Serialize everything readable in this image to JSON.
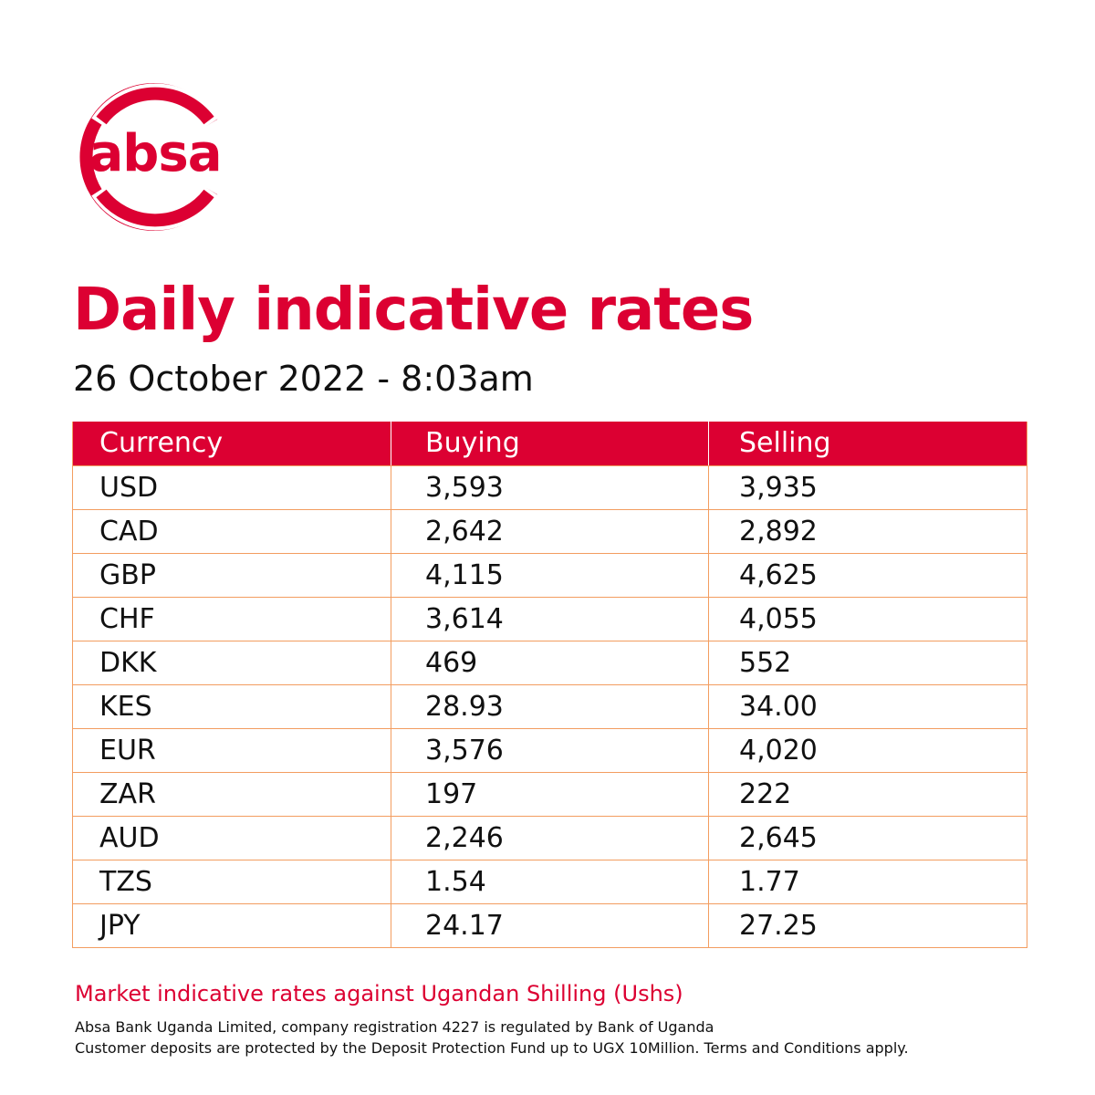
{
  "brand": {
    "logo_text": "absa",
    "color": "#dc0032"
  },
  "title": "Daily indicative rates",
  "date_time": "26 October 2022 - 8:03am",
  "table": {
    "headers": [
      "Currency",
      "Buying",
      "Selling"
    ],
    "rows": [
      {
        "currency": "USD",
        "buying": "3,593",
        "selling": "3,935"
      },
      {
        "currency": "CAD",
        "buying": "2,642",
        "selling": "2,892"
      },
      {
        "currency": "GBP",
        "buying": "4,115",
        "selling": "4,625"
      },
      {
        "currency": "CHF",
        "buying": "3,614",
        "selling": "4,055"
      },
      {
        "currency": "DKK",
        "buying": "469",
        "selling": "552"
      },
      {
        "currency": "KES",
        "buying": "28.93",
        "selling": "34.00"
      },
      {
        "currency": "EUR",
        "buying": "3,576",
        "selling": "4,020"
      },
      {
        "currency": "ZAR",
        "buying": "197",
        "selling": "222"
      },
      {
        "currency": "AUD",
        "buying": "2,246",
        "selling": "2,645"
      },
      {
        "currency": "TZS",
        "buying": "1.54",
        "selling": "1.77"
      },
      {
        "currency": "JPY",
        "buying": "24.17",
        "selling": "27.25"
      }
    ],
    "header_color": "#dc0032",
    "border_color": "#f39d60"
  },
  "note": "Market indicative rates against Ugandan Shilling (Ushs)",
  "legal": {
    "line1": "Absa Bank Uganda Limited, company registration 4227  is regulated by Bank of Uganda",
    "line2": "Customer deposits are protected by the Deposit Protection Fund up to UGX 10Million. Terms and Conditions apply."
  }
}
